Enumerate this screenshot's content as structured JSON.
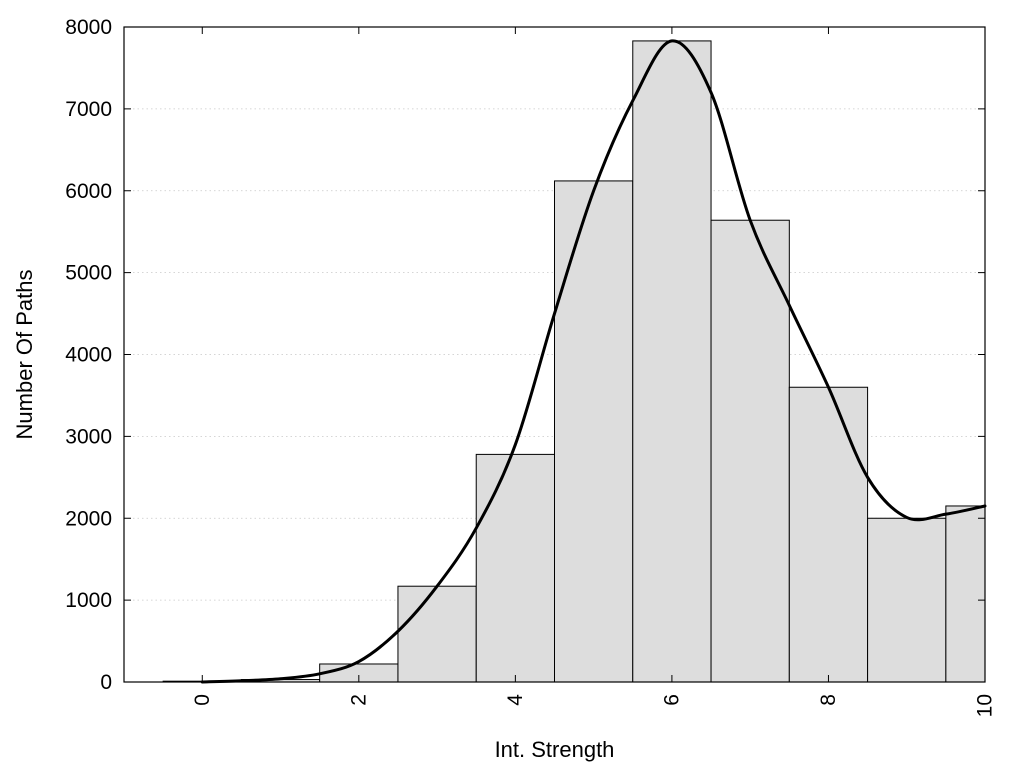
{
  "chart_data": {
    "type": "bar",
    "title": "",
    "xlabel": "Int. Strength",
    "ylabel": "Number Of Paths",
    "xlim": [
      -1,
      10
    ],
    "ylim": [
      0,
      8000
    ],
    "x_ticks": [
      0,
      2,
      4,
      6,
      8,
      10
    ],
    "y_ticks": [
      0,
      1000,
      2000,
      3000,
      4000,
      5000,
      6000,
      7000,
      8000
    ],
    "grid": "horizontal dotted",
    "bar_width": 1,
    "categories": [
      0,
      1,
      2,
      3,
      4,
      5,
      6,
      7,
      8,
      9,
      10
    ],
    "values": [
      10,
      30,
      220,
      1170,
      2780,
      6120,
      7830,
      5640,
      3600,
      2000,
      2150
    ],
    "bar_color": "#dddddd",
    "curve_color": "#000000",
    "curve": {
      "x": [
        0,
        0.5,
        1,
        1.5,
        2,
        2.5,
        3,
        3.5,
        4,
        4.5,
        5,
        5.5,
        6,
        6.5,
        7,
        7.5,
        8,
        8.5,
        9,
        9.5,
        10
      ],
      "y": [
        0,
        15,
        40,
        100,
        250,
        620,
        1170,
        1880,
        2900,
        4500,
        6000,
        7100,
        7830,
        7200,
        5640,
        4600,
        3600,
        2500,
        2010,
        2050,
        2150
      ]
    }
  }
}
